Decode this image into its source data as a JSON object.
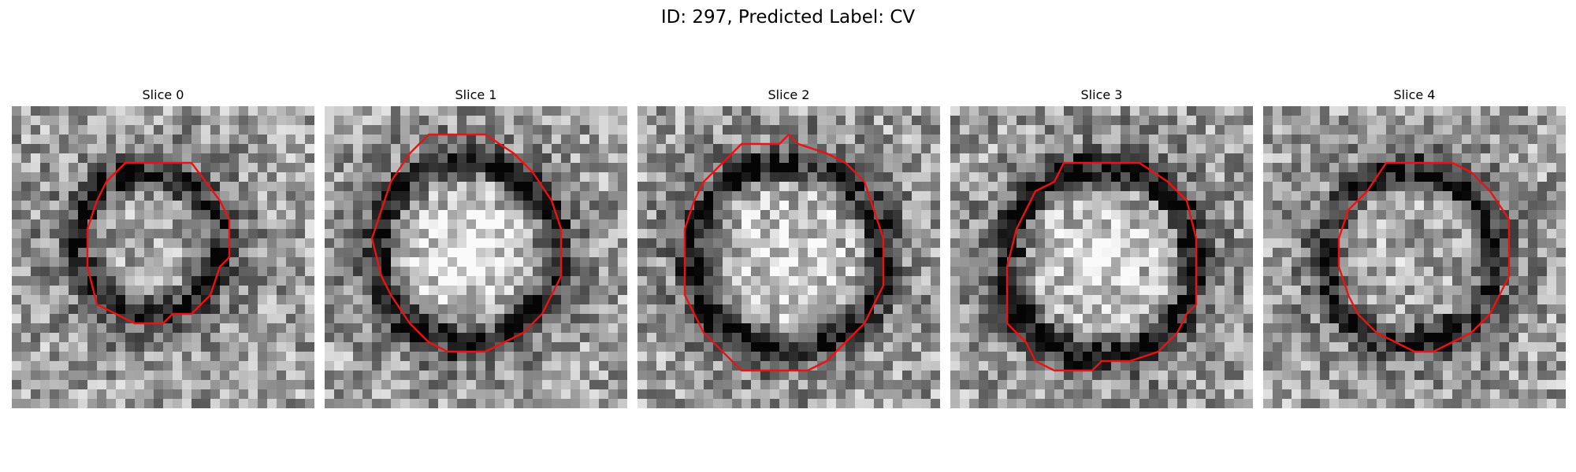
{
  "figure": {
    "title": "ID: 297, Predicted Label: CV",
    "contour_color": "#ee1111",
    "grid_size": 32
  },
  "panels": [
    {
      "title": "Slice 0",
      "blob": {
        "cx": 14.5,
        "cy": 14.5,
        "r": 7.5,
        "rim_dark": 0.55,
        "center_light": 0.05
      },
      "contour": [
        [
          12,
          6
        ],
        [
          19,
          6
        ],
        [
          22,
          10
        ],
        [
          23,
          12
        ],
        [
          23,
          16
        ],
        [
          22,
          17
        ],
        [
          21,
          20
        ],
        [
          19,
          22
        ],
        [
          17,
          22
        ],
        [
          16,
          23
        ],
        [
          13,
          23
        ],
        [
          11,
          22
        ],
        [
          9,
          21
        ],
        [
          8,
          17
        ],
        [
          8,
          13
        ],
        [
          9,
          10
        ],
        [
          10,
          8
        ]
      ]
    },
    {
      "title": "Slice 1",
      "blob": {
        "cx": 15.0,
        "cy": 15.5,
        "r": 9.5,
        "rim_dark": 0.55,
        "center_light": 0.35
      },
      "contour": [
        [
          11,
          3
        ],
        [
          17,
          3
        ],
        [
          20,
          5
        ],
        [
          22,
          7
        ],
        [
          24,
          10
        ],
        [
          25,
          13
        ],
        [
          25,
          18
        ],
        [
          24,
          20
        ],
        [
          23,
          22
        ],
        [
          21,
          24
        ],
        [
          19,
          25
        ],
        [
          17,
          26
        ],
        [
          13,
          26
        ],
        [
          11,
          25
        ],
        [
          9,
          23
        ],
        [
          7,
          20
        ],
        [
          6,
          18
        ],
        [
          5,
          14
        ],
        [
          6,
          11
        ],
        [
          7,
          8
        ],
        [
          9,
          5
        ]
      ]
    },
    {
      "title": "Slice 2",
      "blob": {
        "cx": 16.0,
        "cy": 16.0,
        "r": 10.0,
        "rim_dark": 0.55,
        "center_light": 0.25
      },
      "contour": [
        [
          11,
          4
        ],
        [
          15,
          4
        ],
        [
          16,
          3
        ],
        [
          17,
          4
        ],
        [
          20,
          5
        ],
        [
          22,
          6
        ],
        [
          24,
          8
        ],
        [
          25,
          11
        ],
        [
          26,
          14
        ],
        [
          26,
          19
        ],
        [
          25,
          21
        ],
        [
          24,
          23
        ],
        [
          22,
          25
        ],
        [
          20,
          27
        ],
        [
          18,
          28
        ],
        [
          11,
          28
        ],
        [
          9,
          26
        ],
        [
          7,
          24
        ],
        [
          6,
          22
        ],
        [
          5,
          20
        ],
        [
          5,
          13
        ],
        [
          6,
          10
        ],
        [
          7,
          8
        ],
        [
          9,
          6
        ]
      ]
    },
    {
      "title": "Slice 3",
      "blob": {
        "cx": 16.0,
        "cy": 16.5,
        "r": 10.0,
        "rim_dark": 0.6,
        "center_light": 0.25
      },
      "contour": [
        [
          12,
          6
        ],
        [
          20,
          6
        ],
        [
          23,
          8
        ],
        [
          25,
          10
        ],
        [
          26,
          14
        ],
        [
          26,
          21
        ],
        [
          25,
          22
        ],
        [
          24,
          24
        ],
        [
          22,
          26
        ],
        [
          19,
          27
        ],
        [
          16,
          27
        ],
        [
          15,
          28
        ],
        [
          11,
          28
        ],
        [
          9,
          27
        ],
        [
          8,
          25
        ],
        [
          6,
          23
        ],
        [
          6,
          17
        ],
        [
          7,
          13
        ],
        [
          8,
          11
        ],
        [
          9,
          9
        ],
        [
          11,
          8
        ]
      ]
    },
    {
      "title": "Slice 4",
      "blob": {
        "cx": 15.5,
        "cy": 16.0,
        "r": 9.0,
        "rim_dark": 0.5,
        "center_light": 0.05
      },
      "contour": [
        [
          13,
          6
        ],
        [
          20,
          6
        ],
        [
          22,
          7
        ],
        [
          24,
          9
        ],
        [
          26,
          12
        ],
        [
          26,
          18
        ],
        [
          25,
          20
        ],
        [
          24,
          22
        ],
        [
          22,
          24
        ],
        [
          20,
          25
        ],
        [
          18,
          26
        ],
        [
          16,
          26
        ],
        [
          14,
          25
        ],
        [
          12,
          24
        ],
        [
          10,
          22
        ],
        [
          9,
          20
        ],
        [
          8,
          17
        ],
        [
          8,
          14
        ],
        [
          9,
          11
        ],
        [
          11,
          9
        ]
      ]
    }
  ]
}
